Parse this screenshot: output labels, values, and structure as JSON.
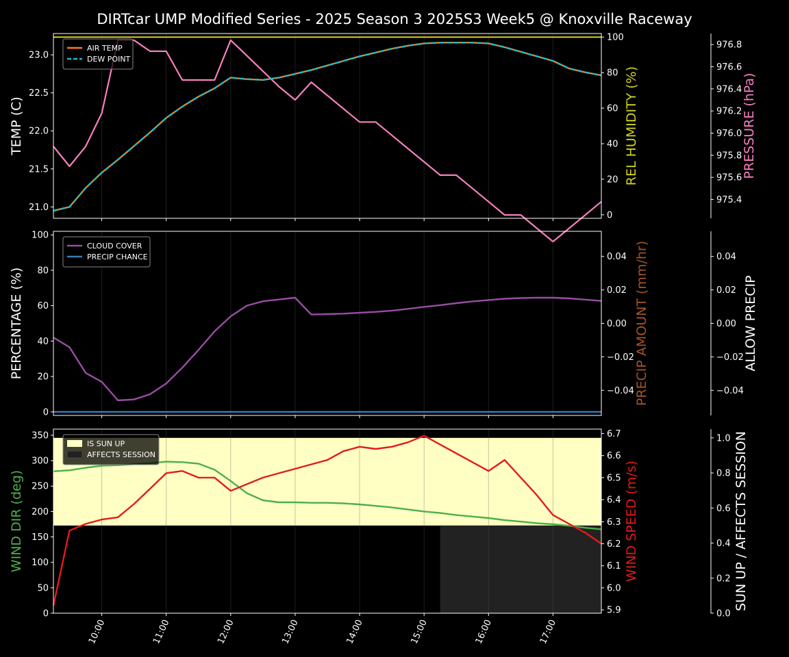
{
  "title": "DIRTcar UMP Modified Series - 2025 Season 3 2025S3 Week5 @ Knoxville Raceway",
  "colors": {
    "air_temp": "#ff7f0e",
    "dew_point": "#17becf",
    "humidity": "#d4d422",
    "pressure": "#f781bf",
    "cloud": "#984ea3",
    "precip_chance": "#377eb8",
    "precip_amount": "#a65628",
    "wind_dir": "#4daf4a",
    "wind_speed": "#e41a1c",
    "sun_up": "#ffffc4",
    "affects_session": "#222222"
  },
  "chart_data": [
    {
      "type": "line",
      "name": "temperature-panel",
      "time_range": [
        "09:15",
        "17:45"
      ],
      "ylabel": "TEMP (C)",
      "ylim": [
        20.85,
        23.28
      ],
      "yticks": [
        "21.0",
        "21.5",
        "22.0",
        "22.5",
        "23.0"
      ],
      "ylabel_right": "REL HUMIDITY (%)",
      "ylim_right": [
        -2,
        102
      ],
      "yticks_right": [
        "0",
        "20",
        "40",
        "60",
        "80",
        "100"
      ],
      "ylabel_right2": "PRESSURE (hPa)",
      "ylim_right2": [
        975.23,
        976.9
      ],
      "yticks_right2": [
        "975.4",
        "975.6",
        "975.8",
        "976.0",
        "976.2",
        "976.4",
        "976.6",
        "976.8"
      ],
      "legend": [
        "AIR TEMP",
        "DEW POINT"
      ],
      "series": [
        {
          "name": "AIR TEMP",
          "axis": "left",
          "x": [
            "09:15",
            "09:30",
            "09:45",
            "10:00",
            "10:15",
            "10:30",
            "10:45",
            "11:00",
            "11:15",
            "11:30",
            "11:45",
            "12:00",
            "12:15",
            "12:30",
            "12:45",
            "13:00",
            "13:15",
            "13:30",
            "13:45",
            "14:00",
            "14:15",
            "14:30",
            "14:45",
            "15:00",
            "15:15",
            "15:30",
            "15:45",
            "16:00",
            "16:15",
            "16:30",
            "16:45",
            "17:00",
            "17:15",
            "17:30",
            "17:45"
          ],
          "values": [
            20.95,
            21.0,
            21.25,
            21.45,
            21.62,
            21.8,
            21.98,
            22.17,
            22.32,
            22.45,
            22.56,
            22.7,
            22.68,
            22.67,
            22.7,
            22.75,
            22.8,
            22.86,
            22.92,
            22.98,
            23.03,
            23.08,
            23.12,
            23.15,
            23.16,
            23.16,
            23.16,
            23.15,
            23.1,
            23.04,
            22.98,
            22.92,
            22.82,
            22.77,
            22.73
          ]
        },
        {
          "name": "DEW POINT",
          "axis": "left",
          "x": [
            "09:15",
            "09:30",
            "09:45",
            "10:00",
            "10:15",
            "10:30",
            "10:45",
            "11:00",
            "11:15",
            "11:30",
            "11:45",
            "12:00",
            "12:15",
            "12:30",
            "12:45",
            "13:00",
            "13:15",
            "13:30",
            "13:45",
            "14:00",
            "14:15",
            "14:30",
            "14:45",
            "15:00",
            "15:15",
            "15:30",
            "15:45",
            "16:00",
            "16:15",
            "16:30",
            "16:45",
            "17:00",
            "17:15",
            "17:30",
            "17:45"
          ],
          "values": [
            20.95,
            21.0,
            21.25,
            21.45,
            21.62,
            21.8,
            21.98,
            22.17,
            22.32,
            22.45,
            22.56,
            22.7,
            22.68,
            22.67,
            22.7,
            22.75,
            22.8,
            22.86,
            22.92,
            22.98,
            23.03,
            23.08,
            23.12,
            23.15,
            23.16,
            23.16,
            23.16,
            23.15,
            23.1,
            23.04,
            22.98,
            22.92,
            22.82,
            22.77,
            22.73
          ]
        },
        {
          "name": "REL HUMIDITY",
          "axis": "right",
          "x": [
            "09:15",
            "17:45"
          ],
          "values": [
            100,
            100
          ]
        },
        {
          "name": "PRESSURE",
          "axis": "right2",
          "x": [
            "09:15",
            "09:30",
            "09:45",
            "10:00",
            "10:15",
            "10:30",
            "10:45",
            "11:00",
            "11:15",
            "11:30",
            "11:45",
            "12:00",
            "12:15",
            "12:30",
            "12:45",
            "13:00",
            "13:15",
            "13:30",
            "13:45",
            "14:00",
            "14:15",
            "14:30",
            "14:45",
            "15:00",
            "15:15",
            "15:30",
            "15:45",
            "16:00",
            "16:15",
            "16:30",
            "16:45",
            "17:00",
            "17:15",
            "17:30",
            "17:45"
          ],
          "values": [
            975.88,
            975.7,
            975.88,
            976.18,
            976.84,
            976.84,
            976.74,
            976.74,
            976.48,
            976.48,
            976.48,
            976.84,
            976.7,
            976.56,
            976.42,
            976.3,
            976.46,
            976.34,
            976.22,
            976.1,
            976.1,
            975.98,
            975.86,
            975.74,
            975.62,
            975.62,
            975.5,
            975.38,
            975.26,
            975.26,
            975.14,
            975.02,
            975.14,
            975.26,
            975.38
          ]
        }
      ]
    },
    {
      "type": "line",
      "name": "cloud-precip-panel",
      "time_range": [
        "09:15",
        "17:45"
      ],
      "ylabel": "PERCENTAGE (%)",
      "ylim": [
        -2,
        102
      ],
      "yticks": [
        "0",
        "20",
        "40",
        "60",
        "80",
        "100"
      ],
      "ylabel_right": "PRECIP AMOUNT (mm/hr)",
      "ylim_right": [
        -0.055,
        0.055
      ],
      "yticks_right": [
        "−0.04",
        "−0.02",
        "0.00",
        "0.02",
        "0.04"
      ],
      "ylabel_right2": "ALLOW PRECIP",
      "ylim_right2": [
        -0.055,
        0.055
      ],
      "yticks_right2": [
        "−0.04",
        "−0.02",
        "0.00",
        "0.02",
        "0.04"
      ],
      "legend": [
        "CLOUD COVER",
        "PRECIP CHANCE"
      ],
      "series": [
        {
          "name": "CLOUD COVER",
          "x": [
            "09:15",
            "09:30",
            "09:45",
            "10:00",
            "10:15",
            "10:30",
            "10:45",
            "11:00",
            "11:15",
            "11:30",
            "11:45",
            "12:00",
            "12:15",
            "12:30",
            "12:45",
            "13:00",
            "13:15",
            "13:30",
            "13:45",
            "14:00",
            "14:15",
            "14:30",
            "14:45",
            "15:00",
            "15:15",
            "15:30",
            "15:45",
            "16:00",
            "16:15",
            "16:30",
            "16:45",
            "17:00",
            "17:15",
            "17:30",
            "17:45"
          ],
          "values": [
            42,
            36.5,
            22,
            17,
            6.5,
            7,
            10,
            16,
            25,
            35,
            45.5,
            54,
            60,
            62.5,
            63.5,
            64.5,
            55,
            55.2,
            55.5,
            56,
            56.5,
            57.2,
            58.2,
            59.3,
            60.3,
            61.4,
            62.4,
            63.2,
            63.9,
            64.3,
            64.5,
            64.5,
            64.1,
            63.4,
            62.7
          ]
        },
        {
          "name": "PRECIP CHANCE",
          "x": [
            "09:15",
            "17:45"
          ],
          "values": [
            0,
            0
          ]
        }
      ]
    },
    {
      "type": "line",
      "name": "wind-sun-panel",
      "time_range": [
        "09:15",
        "17:45"
      ],
      "ylabel": "WIND DIR (deg)",
      "ylim": [
        0,
        362
      ],
      "yticks": [
        "0",
        "50",
        "100",
        "150",
        "200",
        "250",
        "300",
        "350"
      ],
      "ylabel_right": "WIND SPEED (m/s)",
      "ylim_right": [
        5.885,
        6.72
      ],
      "yticks_right": [
        "5.9",
        "6.0",
        "6.1",
        "6.2",
        "6.3",
        "6.4",
        "6.5",
        "6.6",
        "6.7"
      ],
      "ylabel_right2": "SUN UP / AFFECTS SESSION",
      "ylim_right2": [
        0,
        1.05
      ],
      "yticks_right2": [
        "0.0",
        "0.2",
        "0.4",
        "0.6",
        "0.8",
        "1.0"
      ],
      "xticks": [
        "10:00",
        "11:00",
        "12:00",
        "13:00",
        "14:00",
        "15:00",
        "16:00",
        "17:00"
      ],
      "legend": [
        "IS SUN UP",
        "AFFECTS SESSION"
      ],
      "bands": [
        {
          "name": "IS SUN UP",
          "x": [
            "09:15",
            "17:45"
          ],
          "from": 0.5,
          "to": 1.0
        },
        {
          "name": "AFFECTS SESSION",
          "x": [
            "15:15",
            "17:45"
          ],
          "from": 0.0,
          "to": 0.5
        }
      ],
      "series": [
        {
          "name": "WIND DIR",
          "x": [
            "09:15",
            "09:30",
            "09:45",
            "10:00",
            "10:15",
            "10:30",
            "10:45",
            "11:00",
            "11:15",
            "11:30",
            "11:45",
            "12:00",
            "12:15",
            "12:30",
            "12:45",
            "13:00",
            "13:15",
            "13:30",
            "13:45",
            "14:00",
            "14:15",
            "14:30",
            "14:45",
            "15:00",
            "15:15",
            "15:30",
            "15:45",
            "16:00",
            "16:15",
            "16:30",
            "16:45",
            "17:00",
            "17:15",
            "17:30",
            "17:45"
          ],
          "values": [
            279,
            281,
            286,
            290,
            291,
            293,
            295,
            298,
            297,
            294,
            282,
            260,
            236,
            222,
            218,
            218,
            217,
            217,
            216,
            214,
            211,
            208,
            204,
            200,
            197,
            193,
            190,
            187,
            183,
            180,
            177,
            175,
            172,
            168,
            165
          ]
        },
        {
          "name": "WIND SPEED",
          "x": [
            "09:15",
            "09:30",
            "09:45",
            "10:00",
            "10:15",
            "10:30",
            "10:45",
            "11:00",
            "11:15",
            "11:30",
            "11:45",
            "12:00",
            "12:15",
            "12:30",
            "12:45",
            "13:00",
            "13:15",
            "13:30",
            "13:45",
            "14:00",
            "14:15",
            "14:30",
            "14:45",
            "15:00",
            "15:15",
            "15:30",
            "15:45",
            "16:00",
            "16:15",
            "16:30",
            "16:45",
            "17:00",
            "17:15",
            "17:30",
            "17:45"
          ],
          "values": [
            5.92,
            6.26,
            6.29,
            6.31,
            6.32,
            6.38,
            6.45,
            6.52,
            6.53,
            6.5,
            6.5,
            6.44,
            6.47,
            6.5,
            6.52,
            6.54,
            6.56,
            6.58,
            6.62,
            6.64,
            6.63,
            6.64,
            6.66,
            6.69,
            6.65,
            6.61,
            6.57,
            6.53,
            6.58,
            6.5,
            6.42,
            6.33,
            6.29,
            6.25,
            6.2
          ]
        }
      ]
    }
  ]
}
